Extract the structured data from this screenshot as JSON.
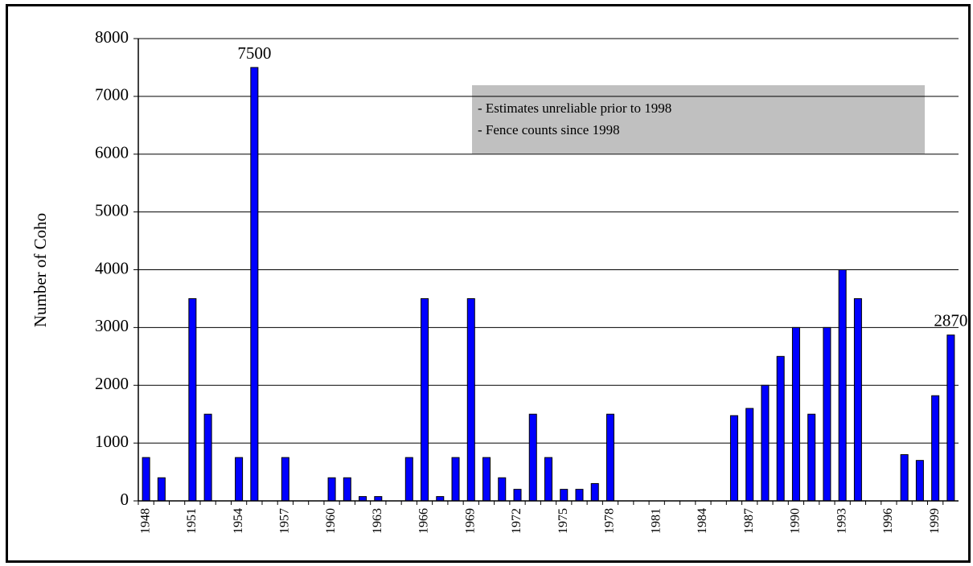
{
  "chart_data": {
    "type": "bar",
    "y_label": "Number of Coho",
    "categories": [
      "1948",
      null,
      null,
      "1951",
      null,
      null,
      "1954",
      null,
      null,
      "1957",
      null,
      null,
      "1960",
      null,
      null,
      "1963",
      null,
      null,
      "1966",
      null,
      null,
      "1969",
      null,
      null,
      "1972",
      null,
      null,
      "1975",
      null,
      null,
      "1978",
      null,
      null,
      "1981",
      null,
      null,
      "1984",
      null,
      null,
      "1987",
      null,
      null,
      "1990",
      null,
      null,
      "1993",
      null,
      null,
      "1996",
      null,
      null,
      "1999",
      null
    ],
    "values": [
      750,
      400,
      0,
      3500,
      1500,
      0,
      750,
      7500,
      0,
      750,
      0,
      0,
      400,
      400,
      75,
      75,
      0,
      750,
      3500,
      75,
      750,
      3500,
      750,
      400,
      200,
      1500,
      750,
      200,
      200,
      300,
      1500,
      0,
      0,
      0,
      0,
      0,
      0,
      0,
      1475,
      1600,
      2000,
      2500,
      3000,
      1500,
      3000,
      4000,
      3500,
      0,
      0,
      800,
      700,
      1820,
      2870
    ],
    "value_labels": [
      null,
      null,
      null,
      null,
      null,
      null,
      null,
      7500,
      null,
      null,
      null,
      null,
      null,
      null,
      null,
      null,
      null,
      null,
      null,
      null,
      null,
      null,
      null,
      null,
      null,
      null,
      null,
      null,
      null,
      null,
      null,
      null,
      null,
      null,
      null,
      null,
      null,
      null,
      null,
      null,
      null,
      null,
      null,
      null,
      null,
      null,
      null,
      null,
      null,
      null,
      null,
      null,
      2870
    ],
    "color": "#0000ff",
    "ylim": [
      0,
      8000
    ],
    "yticks": [
      0,
      1000,
      2000,
      3000,
      4000,
      5000,
      6000,
      7000,
      8000
    ],
    "grid": true,
    "annotations": [
      "- Estimates unreliable prior to 1998",
      "- Fence counts since 1998"
    ]
  }
}
